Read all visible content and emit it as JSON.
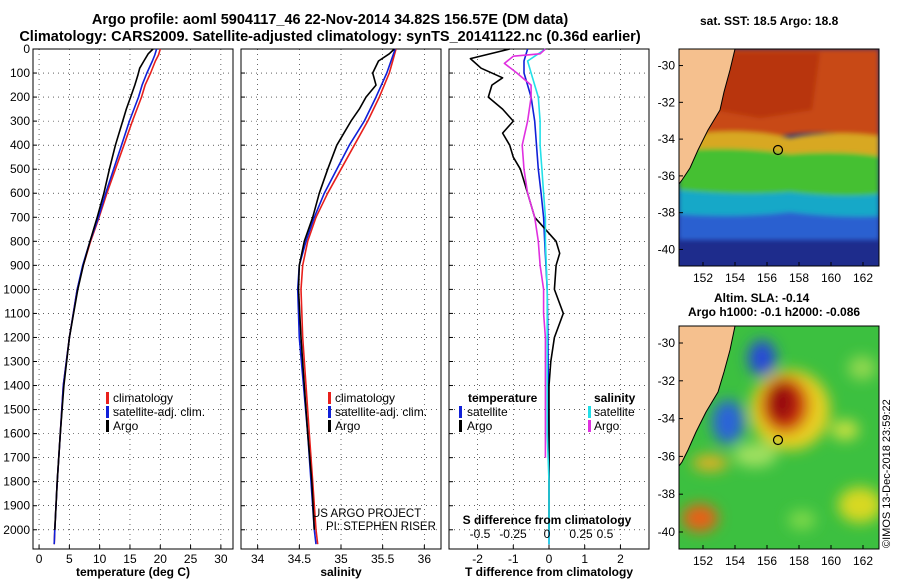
{
  "header": {
    "title_line1": "Argo profile: aoml 5904117_46 22-Nov-2014 34.82S 156.57E (DM data)",
    "title_line2": "Climatology: CARS2009. Satellite-adjusted climatology: synTS_20141122.nc (0.36d earlier)"
  },
  "stamp": "©IMOS 13-Dec-2018 23:59:22",
  "colors": {
    "climatology": "#e8201c",
    "satellite": "#1020d8",
    "argo": "#000000",
    "sat_salinity": "#22e0e8",
    "argo_salinity": "#e030e0",
    "land": "#f5c08e"
  },
  "chart_data": [
    {
      "id": "temperature",
      "type": "line",
      "xlabel": "temperature (deg C)",
      "ylabel": "",
      "xlim": [
        -1,
        32
      ],
      "ylim": [
        2080,
        0
      ],
      "x_ticks": [
        "0",
        "5",
        "10",
        "15",
        "20",
        "25",
        "30"
      ],
      "x_tick_values": [
        0,
        5,
        10,
        15,
        20,
        25,
        30
      ],
      "y_ticks": [
        "0",
        "100",
        "200",
        "300",
        "400",
        "500",
        "600",
        "700",
        "800",
        "900",
        "1000",
        "1100",
        "1200",
        "1300",
        "1400",
        "1500",
        "1600",
        "1700",
        "1800",
        "1900",
        "2000"
      ],
      "y_tick_values": [
        0,
        100,
        200,
        300,
        400,
        500,
        600,
        700,
        800,
        900,
        1000,
        1100,
        1200,
        1300,
        1400,
        1500,
        1600,
        1700,
        1800,
        1900,
        2000
      ],
      "legend": [
        "climatology",
        "satellite-adj. clim.",
        "Argo"
      ],
      "series": [
        {
          "name": "climatology",
          "depth": [
            0,
            25,
            50,
            100,
            150,
            200,
            300,
            400,
            500,
            600,
            700,
            800,
            900,
            1000,
            1200,
            1400,
            1600,
            1800,
            2000,
            2060
          ],
          "values": [
            20.0,
            19.7,
            19.2,
            18.4,
            17.5,
            16.9,
            15.4,
            14.0,
            12.6,
            11.2,
            9.9,
            8.5,
            7.3,
            6.3,
            5.0,
            4.0,
            3.5,
            3.0,
            2.6,
            2.5
          ]
        },
        {
          "name": "satellite-adj. clim.",
          "depth": [
            0,
            25,
            50,
            100,
            150,
            200,
            300,
            400,
            500,
            600,
            700,
            800,
            900,
            1000,
            1200,
            1400,
            1600,
            1800,
            2000,
            2060
          ],
          "values": [
            19.4,
            19.1,
            18.7,
            17.8,
            17.0,
            16.4,
            14.9,
            13.6,
            12.3,
            11.0,
            9.8,
            8.4,
            7.2,
            6.3,
            5.0,
            4.0,
            3.5,
            3.0,
            2.6,
            2.5
          ]
        },
        {
          "name": "Argo",
          "depth": [
            0,
            20,
            50,
            80,
            110,
            150,
            200,
            250,
            300,
            400,
            500,
            600,
            700,
            800,
            900,
            1000,
            1200,
            1400,
            1600,
            1800,
            2000
          ],
          "values": [
            18.8,
            18.0,
            17.3,
            16.6,
            16.3,
            15.8,
            15.1,
            14.4,
            13.8,
            12.6,
            11.6,
            10.7,
            9.6,
            8.4,
            7.3,
            6.4,
            5.0,
            4.1,
            3.5,
            3.0,
            2.6
          ]
        }
      ]
    },
    {
      "id": "salinity",
      "type": "line",
      "xlabel": "salinity",
      "xlim": [
        33.8,
        36.2
      ],
      "ylim": [
        2080,
        0
      ],
      "x_ticks": [
        "34",
        "34.5",
        "35",
        "35.5",
        "36"
      ],
      "x_tick_values": [
        34,
        34.5,
        35,
        35.5,
        36
      ],
      "legend": [
        "climatology",
        "satellite-adj. clim.",
        "Argo"
      ],
      "annotation_line1": "US ARGO PROJECT",
      "annotation_line2": "PI: STEPHEN RISER",
      "series": [
        {
          "name": "climatology",
          "depth": [
            0,
            50,
            100,
            200,
            300,
            400,
            500,
            600,
            700,
            800,
            900,
            1000,
            1200,
            1400,
            1600,
            1800,
            2000,
            2060
          ],
          "values": [
            35.66,
            35.62,
            35.58,
            35.46,
            35.32,
            35.16,
            35.0,
            34.84,
            34.7,
            34.6,
            34.54,
            34.52,
            34.54,
            34.58,
            34.62,
            34.66,
            34.7,
            34.72
          ]
        },
        {
          "name": "satellite-adj. clim.",
          "depth": [
            0,
            50,
            100,
            200,
            300,
            400,
            500,
            600,
            700,
            800,
            900,
            1000,
            1200,
            1400,
            1600,
            1800,
            2000,
            2060
          ],
          "values": [
            35.65,
            35.6,
            35.55,
            35.42,
            35.28,
            35.1,
            34.95,
            34.8,
            34.68,
            34.58,
            34.5,
            34.48,
            34.5,
            34.55,
            34.6,
            34.64,
            34.68,
            34.7
          ]
        },
        {
          "name": "Argo",
          "depth": [
            0,
            20,
            50,
            100,
            150,
            200,
            250,
            300,
            400,
            500,
            600,
            700,
            800,
            900,
            1000,
            1200,
            1400,
            1600,
            1800,
            2000
          ],
          "values": [
            35.64,
            35.58,
            35.45,
            35.38,
            35.42,
            35.3,
            35.22,
            35.12,
            34.95,
            34.84,
            34.74,
            34.66,
            34.56,
            34.5,
            34.49,
            34.52,
            34.56,
            34.6,
            34.65,
            34.68
          ]
        }
      ]
    },
    {
      "id": "differences",
      "type": "line",
      "xlabel": "T difference from climatology",
      "xlim": [
        -2.8,
        2.8
      ],
      "ylim": [
        2080,
        0
      ],
      "x_ticks": [
        "-2",
        "-1",
        "0",
        "1",
        "2"
      ],
      "x_tick_values": [
        -2,
        -1,
        0,
        1,
        2
      ],
      "s_xlabel": "S difference from climatology",
      "s_ticks": [
        "-0.5",
        "-0.25",
        "0",
        "0.25",
        "0.5"
      ],
      "s_tick_values": [
        -0.5,
        -0.25,
        0,
        0.25,
        0.5
      ],
      "legend_temperature": {
        "heading": "temperature",
        "items": [
          "satellite",
          "Argo"
        ]
      },
      "legend_salinity": {
        "heading": "salinity",
        "items": [
          "satellite",
          "Argo"
        ]
      },
      "series": [
        {
          "name": "T satellite",
          "depth": [
            0,
            50,
            100,
            150,
            200,
            300,
            400,
            500,
            600,
            700,
            800,
            1000,
            1200,
            1400,
            1600,
            1800,
            2000,
            2060
          ],
          "values": [
            -0.6,
            -0.7,
            -0.7,
            -0.6,
            -0.5,
            -0.4,
            -0.35,
            -0.3,
            -0.22,
            -0.15,
            -0.12,
            -0.05,
            -0.03,
            -0.02,
            0,
            0,
            0,
            0
          ]
        },
        {
          "name": "T Argo",
          "depth": [
            0,
            40,
            80,
            120,
            150,
            200,
            250,
            300,
            350,
            400,
            450,
            500,
            600,
            700,
            800,
            850,
            900,
            1000,
            1100,
            1200,
            1300,
            1400,
            1500,
            1600,
            1700,
            1800,
            1900,
            2000
          ],
          "values": [
            -1.1,
            -2.2,
            -1.9,
            -1.3,
            -1.6,
            -1.7,
            -1.3,
            -1.0,
            -1.3,
            -1.1,
            -1.0,
            -0.8,
            -0.6,
            -0.4,
            0.2,
            0.3,
            0.2,
            0.15,
            0.4,
            0.15,
            0.05,
            0.0,
            0.0,
            0.0,
            0.0,
            0.0,
            0.0,
            0.0
          ]
        },
        {
          "name": "S satellite",
          "depth": [
            0,
            20,
            50,
            100,
            200,
            300,
            400,
            500,
            600,
            700,
            800,
            1000,
            1200,
            1400,
            1600,
            1800,
            2000,
            2060
          ],
          "values": [
            -0.02,
            -0.06,
            -0.12,
            -0.1,
            -0.06,
            -0.05,
            -0.05,
            -0.04,
            -0.03,
            -0.02,
            -0.02,
            -0.01,
            -0.01,
            -0.01,
            -0.01,
            0,
            0,
            0
          ]
        },
        {
          "name": "S Argo",
          "depth": [
            0,
            20,
            30,
            60,
            100,
            150,
            200,
            300,
            400,
            500,
            600,
            700,
            800,
            900,
            1000,
            1100,
            1200,
            1300,
            1400,
            1500,
            1600,
            1700
          ],
          "values": [
            -0.02,
            -0.05,
            -0.2,
            -0.25,
            -0.18,
            -0.1,
            -0.1,
            -0.12,
            -0.15,
            -0.14,
            -0.12,
            -0.08,
            -0.06,
            -0.05,
            -0.03,
            -0.03,
            -0.02,
            -0.02,
            -0.02,
            -0.02,
            -0.02,
            -0.02
          ]
        }
      ]
    },
    {
      "id": "sst-map",
      "type": "heatmap",
      "title": "sat. SST: 18.5 Argo: 18.8",
      "x_ticks": [
        "152",
        "154",
        "156",
        "158",
        "160",
        "162"
      ],
      "x_tick_values": [
        152,
        154,
        156,
        158,
        160,
        162
      ],
      "y_ticks": [
        "-30",
        "-32",
        "-34",
        "-36",
        "-38",
        "-40"
      ],
      "y_tick_values": [
        -30,
        -32,
        -34,
        -36,
        -38,
        -40
      ],
      "xlim": [
        150.5,
        163
      ],
      "ylim": [
        -40.9,
        -29.1
      ],
      "marker": {
        "lon": 156.57,
        "lat": -34.82
      }
    },
    {
      "id": "sla-map",
      "type": "heatmap",
      "title_line1": "Altim. SLA: -0.14",
      "title_line2": "Argo h1000: -0.1 h2000: -0.086",
      "x_ticks": [
        "152",
        "154",
        "156",
        "158",
        "160",
        "162"
      ],
      "x_tick_values": [
        152,
        154,
        156,
        158,
        160,
        162
      ],
      "y_ticks": [
        "-30",
        "-32",
        "-34",
        "-36",
        "-38",
        "-40"
      ],
      "y_tick_values": [
        -30,
        -32,
        -34,
        -36,
        -38,
        -40
      ],
      "xlim": [
        150.5,
        163
      ],
      "ylim": [
        -40.9,
        -29.1
      ],
      "marker": {
        "lon": 156.57,
        "lat": -34.82
      }
    }
  ]
}
